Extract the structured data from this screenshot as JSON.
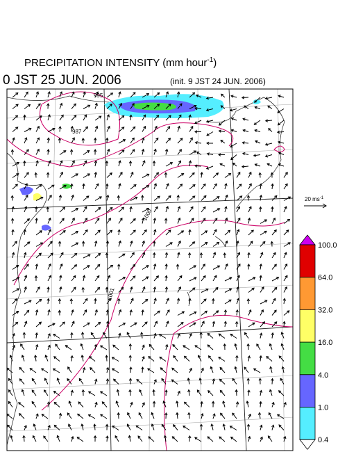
{
  "header": {
    "title_main": "PRECIPITATION INTENSITY (mm hour",
    "title_sup": "-1",
    "title_end": ")",
    "valid_time": "0 JST 25 JUN. 2006",
    "init_time": "(init. 9 JST 24 JUN. 2006)"
  },
  "wind_scale": {
    "label": "20 ms",
    "label_sup": "-1"
  },
  "contour_labels": [
    "987",
    "995",
    "1000",
    "1001"
  ],
  "colorbar": {
    "labels": [
      "100.0",
      "64.0",
      "32.0",
      "16.0",
      "4.0",
      "1.0",
      "0.4"
    ],
    "colors": [
      "#e00000",
      "#ff9933",
      "#ffff66",
      "#44dd44",
      "#6666ff",
      "#55eeff"
    ],
    "over_color": "#cc00ee",
    "under_color": "#ffffff"
  }
}
